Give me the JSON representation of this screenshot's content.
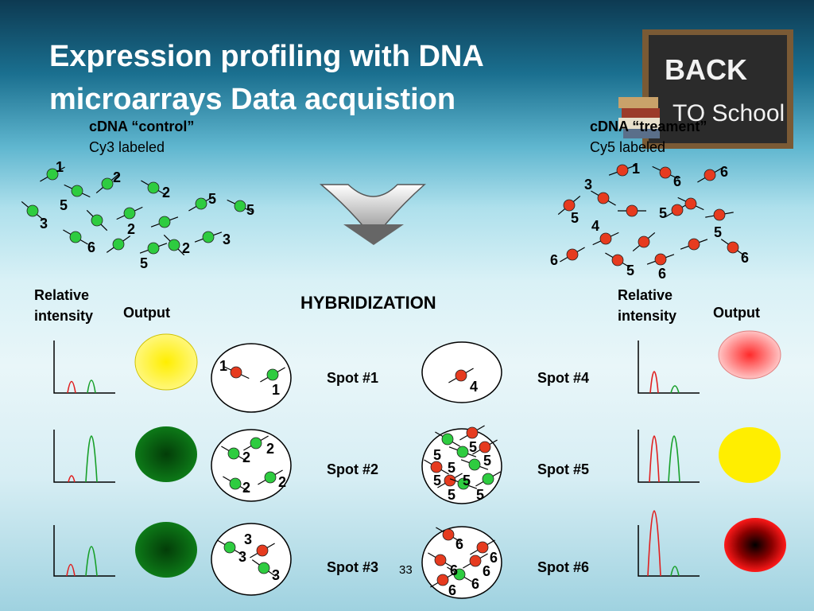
{
  "title": "Expression profiling with DNA microarrays Data acquistion",
  "left_sample": {
    "name": "cDNA “control”",
    "label": "Cy3 labeled"
  },
  "right_sample": {
    "name": "cDNA “treament”",
    "label": "Cy5 labeled"
  },
  "left_headers": {
    "intensity": "Relative intensity",
    "output": "Output"
  },
  "right_headers": {
    "intensity": "Relative intensity",
    "output": "Output"
  },
  "hybridization": "HYBRIDIZATION",
  "spots": [
    "Spot #1",
    "Spot #2",
    "Spot #3",
    "Spot #4",
    "Spot #5",
    "Spot #6"
  ],
  "page_number": "33",
  "board_text": [
    "BACK",
    "TO School"
  ],
  "colors": {
    "green_dye": "#2ecc40",
    "red_dye": "#e63b1f",
    "yellow": "#ffee00",
    "dark_green": "#0b5e14",
    "red_output": "#ff2020"
  },
  "left_pool_numbers": [
    "1",
    "2",
    "2",
    "5",
    "5",
    "5",
    "3",
    "2",
    "6",
    "2",
    "3",
    "5"
  ],
  "right_pool_numbers": [
    "1",
    "6",
    "6",
    "3",
    "5",
    "5",
    "4",
    "5",
    "6",
    "6",
    "5",
    "6"
  ],
  "spot_numbers": {
    "spot1": [
      "1",
      "1"
    ],
    "spot2": [
      "2",
      "2",
      "2",
      "2"
    ],
    "spot3": [
      "3",
      "3",
      "3"
    ],
    "spot4": [
      "4"
    ],
    "spot5": [
      "5",
      "5",
      "5",
      "5",
      "5",
      "5",
      "5",
      "5"
    ],
    "spot6": [
      "6",
      "6",
      "6",
      "6",
      "6",
      "6"
    ]
  }
}
